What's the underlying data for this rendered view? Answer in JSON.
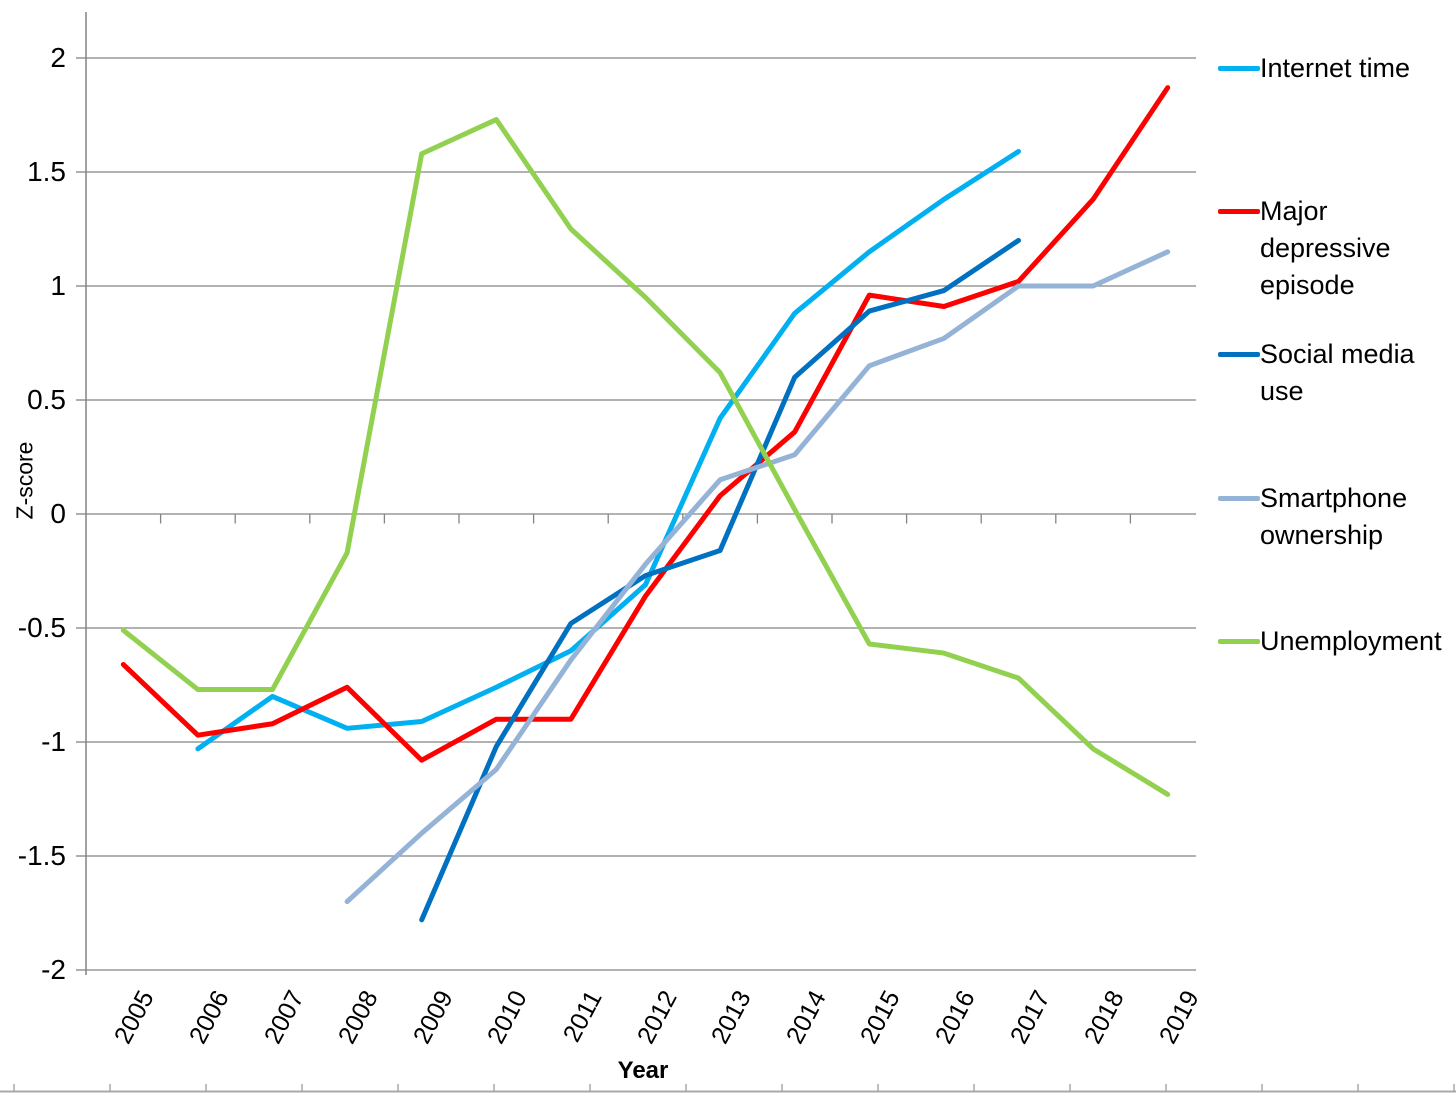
{
  "chart_data": {
    "type": "line",
    "title": "",
    "xlabel": "Year",
    "ylabel": "Z-score",
    "x_labels": [
      "2005",
      "2006",
      "2007",
      "2008",
      "2009",
      "2010",
      "2011",
      "2012",
      "2013",
      "2014",
      "2015",
      "2016",
      "2017",
      "2018",
      "2019"
    ],
    "ylim": [
      -2,
      2
    ],
    "yticks": [
      2,
      1.5,
      1,
      0.5,
      0,
      -0.5,
      -1,
      -1.5,
      -2
    ],
    "ytick_labels": [
      "2",
      "1.5",
      "1",
      "0.5",
      "0",
      "-0.5",
      "-1",
      "-1.5",
      "-2"
    ],
    "grid": true,
    "legend_position": "right",
    "series": [
      {
        "name": "Internet time",
        "color": "#00B0F0",
        "values": [
          null,
          -1.03,
          -0.8,
          -0.94,
          -0.91,
          -0.76,
          -0.6,
          -0.31,
          0.42,
          0.88,
          1.15,
          1.38,
          1.59,
          null,
          null
        ]
      },
      {
        "name": "Major depressive episode",
        "color": "#FF0000",
        "values": [
          -0.66,
          -0.97,
          -0.92,
          -0.76,
          -1.08,
          -0.9,
          -0.9,
          -0.36,
          0.08,
          0.36,
          0.96,
          0.91,
          1.02,
          1.38,
          1.87
        ]
      },
      {
        "name": "Social media use",
        "color": "#0070C0",
        "values": [
          null,
          null,
          null,
          null,
          -1.78,
          -1.02,
          -0.48,
          -0.27,
          -0.16,
          0.6,
          0.89,
          0.98,
          1.2,
          null,
          null
        ]
      },
      {
        "name": "Smartphone ownership",
        "color": "#95B3D7",
        "values": [
          null,
          null,
          null,
          -1.7,
          -1.4,
          -1.12,
          -0.64,
          -0.22,
          0.15,
          0.26,
          0.65,
          0.77,
          1.0,
          1.0,
          1.15
        ]
      },
      {
        "name": "Unemployment",
        "color": "#92D050",
        "values": [
          -0.51,
          -0.77,
          -0.77,
          -0.17,
          1.58,
          1.73,
          1.25,
          0.95,
          0.62,
          0.02,
          -0.57,
          -0.61,
          -0.72,
          -1.03,
          -1.23
        ]
      }
    ],
    "legend": [
      {
        "label": "Internet time",
        "lines": [
          "Internet time"
        ],
        "color": "#00B0F0"
      },
      {
        "label": "Major depressive episode",
        "lines": [
          "Major",
          "depressive",
          "episode"
        ],
        "color": "#FF0000"
      },
      {
        "label": "Social media use",
        "lines": [
          "Social media",
          "use"
        ],
        "color": "#0070C0"
      },
      {
        "label": "Smartphone ownership",
        "lines": [
          "Smartphone",
          "ownership"
        ],
        "color": "#95B3D7"
      },
      {
        "label": "Unemployment",
        "lines": [
          "Unemployment"
        ],
        "color": "#92D050"
      }
    ]
  }
}
